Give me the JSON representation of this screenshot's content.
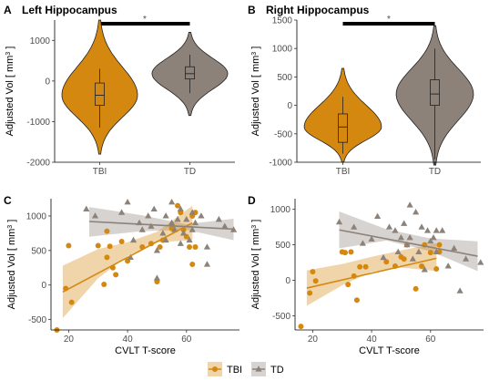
{
  "chart_data": [
    {
      "panel": "A",
      "type": "violin",
      "title": "Left Hippocampus",
      "ylabel": "Adjusted Vol [ mm",
      "ylabel_sup": "3",
      "ylabel_end": " ]",
      "categories": [
        "TBI",
        "TD"
      ],
      "ylim": [
        -2000,
        1500
      ],
      "yticks": [
        -2000,
        -1000,
        0,
        1000
      ],
      "significance": "*",
      "groups": [
        {
          "name": "TBI",
          "color": "#D4880F",
          "min": -1800,
          "max": 1500,
          "q1": -600,
          "median": -350,
          "q3": -50,
          "whisker_low": -1150,
          "whisker_high": 300
        },
        {
          "name": "TD",
          "color": "#8C8279",
          "min": -850,
          "max": 1200,
          "q1": 50,
          "median": 180,
          "q3": 350,
          "whisker_low": -300,
          "whisker_high": 650
        }
      ]
    },
    {
      "panel": "B",
      "type": "violin",
      "title": "Right Hippocampus",
      "ylabel": "Adjusted Vol [ mm",
      "ylabel_sup": "3",
      "ylabel_end": " ]",
      "categories": [
        "TBI",
        "TD"
      ],
      "ylim": [
        -1000,
        1500
      ],
      "yticks": [
        -1000,
        -500,
        0,
        500,
        1000,
        1500
      ],
      "significance": "*",
      "groups": [
        {
          "name": "TBI",
          "color": "#D4880F",
          "min": -1000,
          "max": 650,
          "q1": -650,
          "median": -380,
          "q3": -150,
          "whisker_low": -850,
          "whisker_high": 150
        },
        {
          "name": "TD",
          "color": "#8C8279",
          "min": -1050,
          "max": 1400,
          "q1": 0,
          "median": 200,
          "q3": 450,
          "whisker_low": -950,
          "whisker_high": 1000
        }
      ]
    },
    {
      "panel": "C",
      "type": "scatter",
      "xlabel": "CVLT T-score",
      "ylabel": "Adjusted Vol [ mm",
      "ylabel_sup": "3",
      "ylabel_end": " ]",
      "xlim": [
        14,
        78
      ],
      "ylim": [
        -650,
        1250
      ],
      "xticks": [
        20,
        40,
        60
      ],
      "yticks": [
        -500,
        0,
        500,
        1000
      ],
      "series": [
        {
          "name": "TBI",
          "color": "#D4880F",
          "marker": "circle",
          "points": [
            [
              16,
              -650
            ],
            [
              19,
              -50
            ],
            [
              20,
              570
            ],
            [
              21,
              -250
            ],
            [
              30,
              570
            ],
            [
              32,
              10
            ],
            [
              33,
              400
            ],
            [
              33,
              780
            ],
            [
              34,
              560
            ],
            [
              35,
              250
            ],
            [
              36,
              150
            ],
            [
              38,
              630
            ],
            [
              40,
              350
            ],
            [
              45,
              550
            ],
            [
              48,
              600
            ],
            [
              50,
              50
            ],
            [
              51,
              550
            ],
            [
              52,
              650
            ],
            [
              55,
              820
            ],
            [
              57,
              1150
            ],
            [
              58,
              1050
            ],
            [
              59,
              800
            ],
            [
              60,
              700
            ],
            [
              61,
              550
            ],
            [
              62,
              1000
            ],
            [
              62,
              300
            ],
            [
              63,
              1050
            ],
            [
              63,
              550
            ]
          ],
          "fit": [
            [
              18,
              -100
            ],
            [
              62,
              900
            ]
          ],
          "band_low": [
            [
              18,
              -480
            ],
            [
              30,
              100
            ],
            [
              40,
              420
            ],
            [
              50,
              620
            ],
            [
              62,
              650
            ]
          ],
          "band_high": [
            [
              18,
              280
            ],
            [
              30,
              520
            ],
            [
              40,
              620
            ],
            [
              50,
              770
            ],
            [
              62,
              1150
            ]
          ]
        },
        {
          "name": "TD",
          "color": "#8C8279",
          "marker": "triangle",
          "points": [
            [
              26,
              1100
            ],
            [
              29,
              1000
            ],
            [
              38,
              1050
            ],
            [
              40,
              1200
            ],
            [
              41,
              400
            ],
            [
              42,
              650
            ],
            [
              44,
              900
            ],
            [
              45,
              800
            ],
            [
              47,
              1000
            ],
            [
              48,
              850
            ],
            [
              49,
              1100
            ],
            [
              50,
              500
            ],
            [
              50,
              100
            ],
            [
              52,
              750
            ],
            [
              53,
              650
            ],
            [
              53,
              1000
            ],
            [
              55,
              1200
            ],
            [
              55,
              900
            ],
            [
              56,
              800
            ],
            [
              57,
              950
            ],
            [
              58,
              600
            ],
            [
              58,
              1100
            ],
            [
              59,
              750
            ],
            [
              60,
              950
            ],
            [
              61,
              650
            ],
            [
              62,
              1050
            ],
            [
              62,
              800
            ],
            [
              63,
              900
            ],
            [
              65,
              1000
            ],
            [
              67,
              550
            ],
            [
              67,
              300
            ],
            [
              71,
              950
            ],
            [
              73,
              850
            ],
            [
              76,
              800
            ]
          ],
          "fit": [
            [
              27,
              920
            ],
            [
              76,
              810
            ]
          ],
          "band_low": [
            [
              27,
              700
            ],
            [
              45,
              780
            ],
            [
              60,
              800
            ],
            [
              76,
              650
            ]
          ],
          "band_high": [
            [
              27,
              1130
            ],
            [
              45,
              1010
            ],
            [
              60,
              880
            ],
            [
              76,
              960
            ]
          ]
        }
      ]
    },
    {
      "panel": "D",
      "type": "scatter",
      "xlabel": "CVLT T-score",
      "ylabel": "Adjusted Vol [ mm",
      "ylabel_sup": "3",
      "ylabel_end": " ]",
      "xlim": [
        14,
        78
      ],
      "ylim": [
        -700,
        1150
      ],
      "xticks": [
        20,
        40,
        60
      ],
      "yticks": [
        -500,
        0,
        500,
        1000
      ],
      "series": [
        {
          "name": "TBI",
          "color": "#D4880F",
          "marker": "circle",
          "points": [
            [
              16,
              -650
            ],
            [
              19,
              -180
            ],
            [
              20,
              120
            ],
            [
              21,
              -10
            ],
            [
              30,
              400
            ],
            [
              31,
              390
            ],
            [
              32,
              -60
            ],
            [
              33,
              400
            ],
            [
              34,
              60
            ],
            [
              35,
              -280
            ],
            [
              36,
              190
            ],
            [
              38,
              190
            ],
            [
              45,
              260
            ],
            [
              48,
              200
            ],
            [
              50,
              330
            ],
            [
              51,
              300
            ],
            [
              52,
              500
            ],
            [
              55,
              -120
            ],
            [
              57,
              200
            ],
            [
              58,
              500
            ],
            [
              60,
              390
            ],
            [
              62,
              160
            ],
            [
              63,
              400
            ],
            [
              63,
              500
            ]
          ],
          "fit": [
            [
              18,
              -110
            ],
            [
              62,
              310
            ]
          ],
          "band_low": [
            [
              18,
              -360
            ],
            [
              30,
              -70
            ],
            [
              40,
              120
            ],
            [
              50,
              180
            ],
            [
              62,
              130
            ]
          ],
          "band_high": [
            [
              18,
              140
            ],
            [
              30,
              230
            ],
            [
              40,
              330
            ],
            [
              50,
              420
            ],
            [
              62,
              520
            ]
          ]
        },
        {
          "name": "TD",
          "color": "#8C8279",
          "marker": "triangle",
          "points": [
            [
              29,
              820
            ],
            [
              34,
              750
            ],
            [
              37,
              520
            ],
            [
              40,
              580
            ],
            [
              42,
              900
            ],
            [
              44,
              320
            ],
            [
              46,
              750
            ],
            [
              48,
              700
            ],
            [
              49,
              400
            ],
            [
              50,
              600
            ],
            [
              51,
              800
            ],
            [
              52,
              500
            ],
            [
              53,
              1060
            ],
            [
              53,
              600
            ],
            [
              54,
              300
            ],
            [
              55,
              960
            ],
            [
              56,
              400
            ],
            [
              57,
              750
            ],
            [
              58,
              150
            ],
            [
              59,
              700
            ],
            [
              60,
              550
            ],
            [
              61,
              600
            ],
            [
              62,
              400
            ],
            [
              62,
              700
            ],
            [
              64,
              700
            ],
            [
              66,
              200
            ],
            [
              68,
              450
            ],
            [
              70,
              -150
            ],
            [
              72,
              300
            ],
            [
              77,
              250
            ]
          ],
          "fit": [
            [
              29,
              710
            ],
            [
              76,
              340
            ]
          ],
          "band_low": [
            [
              29,
              450
            ],
            [
              45,
              560
            ],
            [
              60,
              410
            ],
            [
              76,
              130
            ]
          ],
          "band_high": [
            [
              29,
              970
            ],
            [
              45,
              720
            ],
            [
              60,
              590
            ],
            [
              76,
              550
            ]
          ]
        }
      ]
    }
  ],
  "legend": {
    "position": "bottom",
    "items": [
      {
        "label": "TBI",
        "color": "#D4880F",
        "marker": "circle"
      },
      {
        "label": "TD",
        "color": "#8C8279",
        "marker": "triangle"
      }
    ]
  }
}
